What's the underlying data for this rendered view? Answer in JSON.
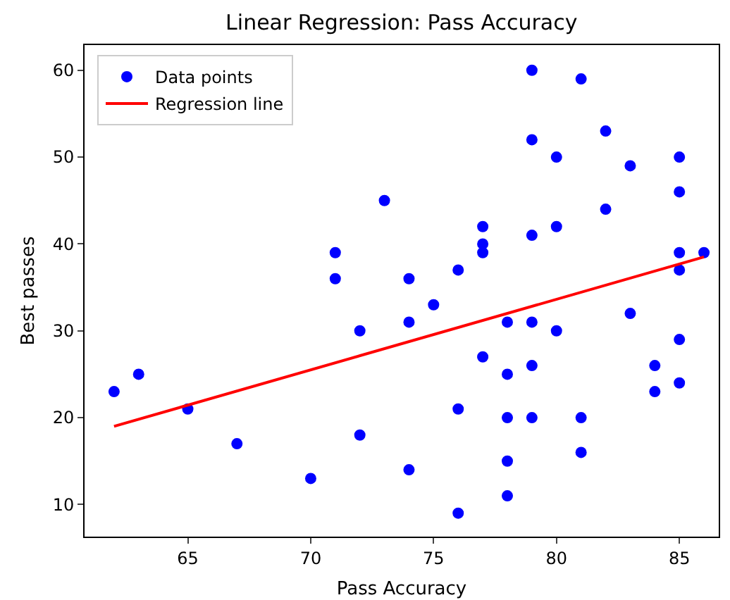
{
  "chart_data": {
    "type": "scatter",
    "title": "Linear Regression: Pass Accuracy",
    "xlabel": "Pass Accuracy",
    "ylabel": "Best passes",
    "series": [
      {
        "name": "Data points",
        "color": "#0000ff",
        "marker": "circle",
        "x": [
          62,
          63,
          65,
          67,
          70,
          71,
          71,
          72,
          72,
          73,
          74,
          74,
          74,
          75,
          76,
          76,
          76,
          77,
          77,
          77,
          77,
          78,
          78,
          78,
          78,
          78,
          79,
          79,
          79,
          79,
          79,
          79,
          80,
          80,
          80,
          81,
          81,
          81,
          82,
          82,
          83,
          83,
          84,
          84,
          85,
          85,
          85,
          85,
          85,
          85,
          86
        ],
        "values": [
          23,
          25,
          21,
          17,
          13,
          39,
          36,
          30,
          18,
          45,
          36,
          31,
          14,
          33,
          37,
          21,
          9,
          42,
          40,
          39,
          27,
          31,
          25,
          20,
          15,
          11,
          60,
          52,
          41,
          31,
          26,
          20,
          50,
          42,
          30,
          59,
          20,
          16,
          53,
          44,
          49,
          32,
          26,
          23,
          50,
          46,
          39,
          37,
          29,
          24,
          39
        ]
      },
      {
        "name": "Regression line",
        "type": "line",
        "color": "#ff0000",
        "marker": "none",
        "line_style": "solid",
        "x": [
          62,
          86
        ],
        "values": [
          19,
          38.5
        ]
      }
    ],
    "xlim": [
      60.8,
      86.6
    ],
    "xticks": [
      65,
      70,
      75,
      80,
      85
    ],
    "ylim": [
      6.3,
      62.9
    ],
    "yticks": [
      10,
      20,
      30,
      40,
      50,
      60
    ],
    "grid": false,
    "legend": "top left"
  }
}
